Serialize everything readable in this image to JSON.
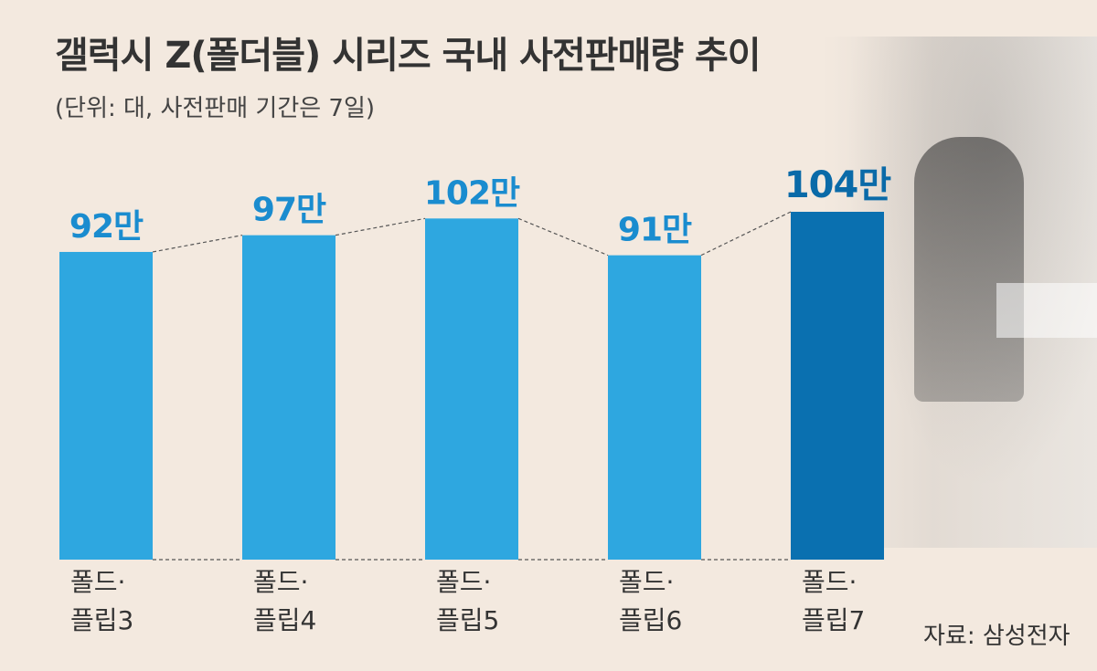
{
  "title": "갤럭시 Z(폴더블) 시리즈 국내 사전판매량 추이",
  "subtitle": "(단위: 대, 사전판매 기간은 7일)",
  "source": "자료: 삼성전자",
  "chart_data": {
    "type": "bar",
    "categories": [
      [
        "폴드·",
        "플립3"
      ],
      [
        "폴드·",
        "플립4"
      ],
      [
        "폴드·",
        "플립5"
      ],
      [
        "폴드·",
        "플립6"
      ],
      [
        "폴드·",
        "플립7"
      ]
    ],
    "values": [
      920000,
      970000,
      1020000,
      910000,
      1040000
    ],
    "data_labels": [
      "92만",
      "97만",
      "102만",
      "91만",
      "104만"
    ],
    "ylim": [
      0,
      1040000
    ],
    "colors": [
      "#2ea7e0",
      "#2ea7e0",
      "#2ea7e0",
      "#2ea7e0",
      "#0a70b0"
    ],
    "label_colors": [
      "#1a8ccf",
      "#1a8ccf",
      "#1a8ccf",
      "#1a8ccf",
      "#0a6aa8"
    ]
  }
}
